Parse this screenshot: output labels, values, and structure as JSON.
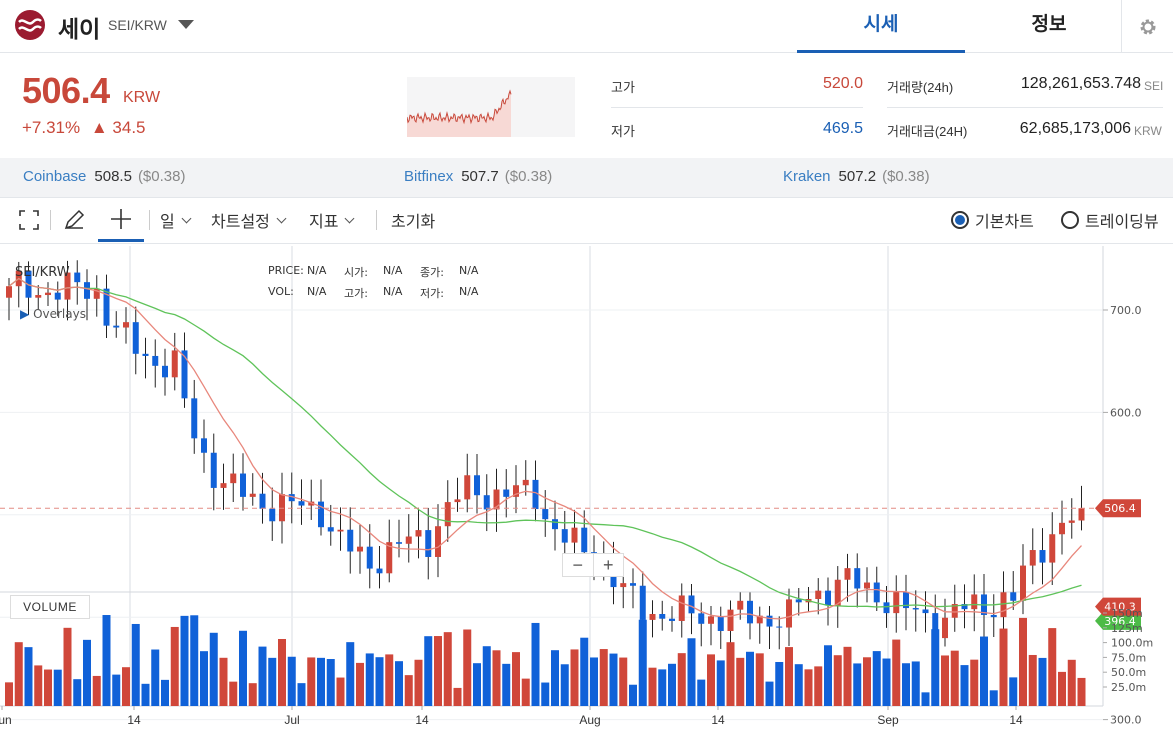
{
  "header": {
    "coin_name": "세이",
    "pair": "SEI/KRW",
    "tabs": [
      {
        "label": "시세",
        "active": true
      },
      {
        "label": "정보",
        "active": false
      }
    ]
  },
  "ticker": {
    "price": "506.4",
    "unit": "KRW",
    "change_pct": "+7.31%",
    "change_abs": "▲ 34.5",
    "high_label": "고가",
    "high": "520.0",
    "low_label": "저가",
    "low": "469.5",
    "volume_label": "거래량(24h)",
    "volume": "128,261,653.748",
    "volume_unit": "SEI",
    "value_label": "거래대금(24H)",
    "value": "62,685,173,006",
    "value_unit": "KRW"
  },
  "exchanges": [
    {
      "name": "Coinbase",
      "price": "508.5",
      "usd": "($0.38)"
    },
    {
      "name": "Bitfinex",
      "price": "507.7",
      "usd": "($0.38)"
    },
    {
      "name": "Kraken",
      "price": "507.2",
      "usd": "($0.38)"
    }
  ],
  "toolbar": {
    "period": "일",
    "settings": "차트설정",
    "indicators": "지표",
    "reset": "초기화",
    "basic_chart": "기본차트",
    "tradingview": "트레이딩뷰"
  },
  "overlay": {
    "symbol": "SEI/KRW",
    "overlays": "Overlays",
    "price_l": "PRICE:",
    "price_v": "N/A",
    "open_l": "시가:",
    "open_v": "N/A",
    "close_l": "종가:",
    "close_v": "N/A",
    "vol_l": "VOL:",
    "vol_v": "N/A",
    "high_l": "고가:",
    "high_v": "N/A",
    "low_l": "저가:",
    "low_v": "N/A",
    "volume_btn": "VOLUME",
    "zoom_out": "−",
    "zoom_in": "+"
  },
  "colors": {
    "up": "#d0473a",
    "down": "#1061d8",
    "ma_short": "#e8877c",
    "ma_long": "#5fc35a",
    "active_tab": "#1a5fb4"
  },
  "chart_data": {
    "type": "candlestick",
    "y_ticks": [
      "700.0",
      "600.0",
      "300.0"
    ],
    "x_ticks": [
      "Jun",
      "14",
      "Jul",
      "14",
      "Aug",
      "14",
      "Sep",
      "14"
    ],
    "volume_ticks": [
      "150m",
      "125m",
      "100.0m",
      "75.0m",
      "50.0m",
      "25.0m"
    ],
    "last_price_label": "506.4",
    "ma_labels": [
      "410.3",
      "396.4"
    ],
    "ylim": [
      300,
      780
    ],
    "vol_max": 160
  }
}
